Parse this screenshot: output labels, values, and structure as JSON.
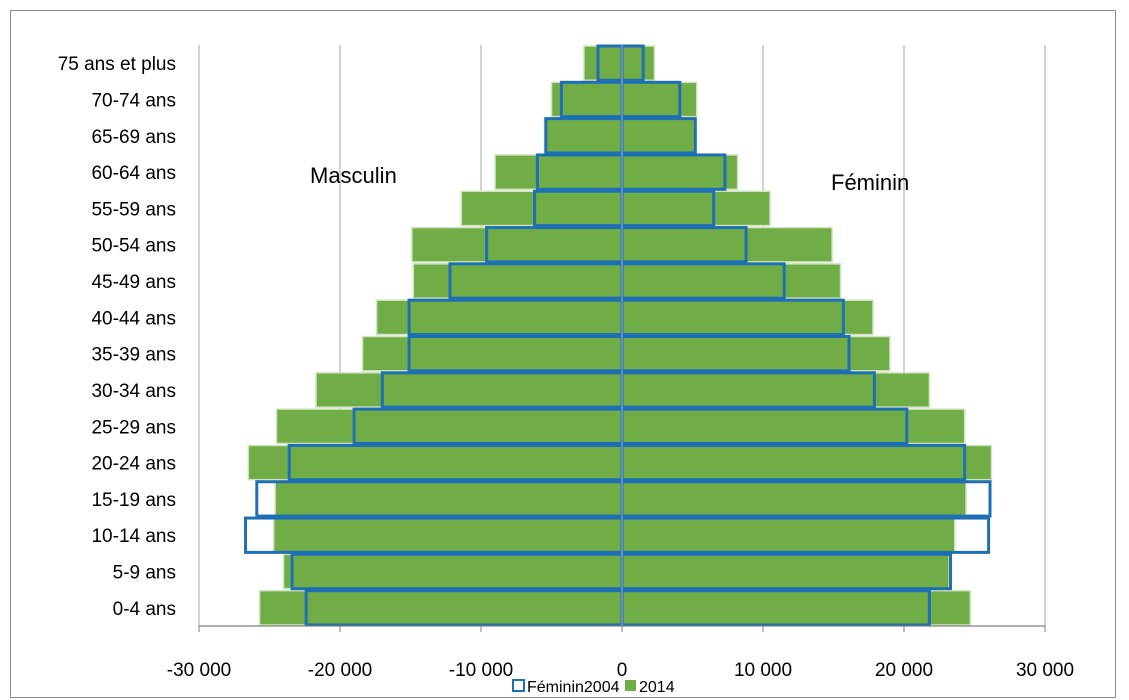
{
  "chart_data": {
    "type": "bar",
    "orientation": "horizontal",
    "categories": [
      "0-4 ans",
      "5-9 ans",
      "10-14 ans",
      "15-19 ans",
      "20-24 ans",
      "25-29 ans",
      "30-34 ans",
      "35-39 ans",
      "40-44 ans",
      "45-49 ans",
      "50-54 ans",
      "55-59 ans",
      "60-64 ans",
      "65-69 ans",
      "70-74 ans",
      "75 ans et plus"
    ],
    "series": [
      {
        "name": "2014",
        "style": "filled",
        "color": "#70ad47",
        "masculin": [
          -25700,
          -24000,
          -24700,
          -24600,
          -26500,
          -24500,
          -21700,
          -18400,
          -17400,
          -14800,
          -14900,
          -11400,
          -9000,
          -5500,
          -5000,
          -2700
        ],
        "feminin": [
          24700,
          23200,
          23600,
          24400,
          26200,
          24300,
          21800,
          19000,
          17800,
          15500,
          14900,
          10500,
          8200,
          5200,
          5300,
          2300
        ]
      },
      {
        "name": "Féminin2004",
        "style": "outline",
        "color": "#1f6fb5",
        "masculin": [
          -22400,
          -23400,
          -26700,
          -25900,
          -23600,
          -19000,
          -17000,
          -15100,
          -15100,
          -12200,
          -9600,
          -6200,
          -6000,
          -5400,
          -4300,
          -1700
        ],
        "feminin": [
          21800,
          23300,
          26000,
          26100,
          24300,
          20200,
          17900,
          16100,
          15700,
          11500,
          8800,
          6500,
          7300,
          5200,
          4100,
          1500
        ]
      }
    ],
    "annotations": {
      "left": "Masculin",
      "right": "Féminin"
    },
    "xaxis": {
      "ticks": [
        -30000,
        -20000,
        -10000,
        0,
        10000,
        20000,
        30000
      ],
      "tick_labels": [
        "-30 000",
        "-20 000",
        "-10 000",
        "0",
        "10 000",
        "20 000",
        "30 000"
      ],
      "range": [
        -30000,
        30000
      ]
    },
    "grid": "vertical",
    "legend_position": "bottom",
    "legend": [
      {
        "label": "Féminin2004",
        "swatch": "outline"
      },
      {
        "label": "2014",
        "swatch": "filled"
      }
    ]
  }
}
